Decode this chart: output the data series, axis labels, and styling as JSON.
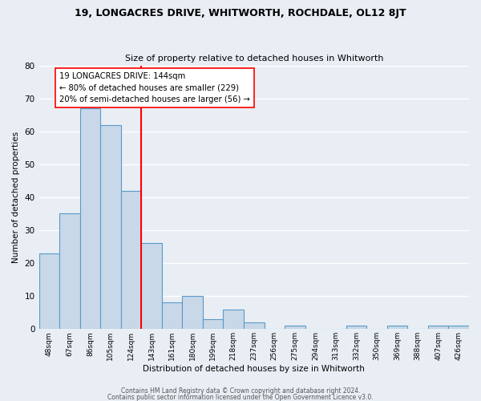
{
  "title": "19, LONGACRES DRIVE, WHITWORTH, ROCHDALE, OL12 8JT",
  "subtitle": "Size of property relative to detached houses in Whitworth",
  "xlabel": "Distribution of detached houses by size in Whitworth",
  "ylabel": "Number of detached properties",
  "bar_color": "#c8d8e8",
  "bar_edge_color": "#5a9ac8",
  "background_color": "#e8eef4",
  "grid_color": "white",
  "categories": [
    "48sqm",
    "67sqm",
    "86sqm",
    "105sqm",
    "124sqm",
    "143sqm",
    "161sqm",
    "180sqm",
    "199sqm",
    "218sqm",
    "237sqm",
    "256sqm",
    "275sqm",
    "294sqm",
    "313sqm",
    "332sqm",
    "350sqm",
    "369sqm",
    "388sqm",
    "407sqm",
    "426sqm"
  ],
  "values": [
    23,
    35,
    67,
    62,
    42,
    26,
    8,
    10,
    3,
    6,
    2,
    0,
    1,
    0,
    0,
    1,
    0,
    1,
    0,
    1,
    1
  ],
  "annotation_title": "19 LONGACRES DRIVE: 144sqm",
  "annotation_line1": "← 80% of detached houses are smaller (229)",
  "annotation_line2": "20% of semi-detached houses are larger (56) →",
  "ylim": [
    0,
    80
  ],
  "yticks": [
    0,
    10,
    20,
    30,
    40,
    50,
    60,
    70,
    80
  ],
  "footer1": "Contains HM Land Registry data © Crown copyright and database right 2024.",
  "footer2": "Contains public sector information licensed under the Open Government Licence v3.0."
}
